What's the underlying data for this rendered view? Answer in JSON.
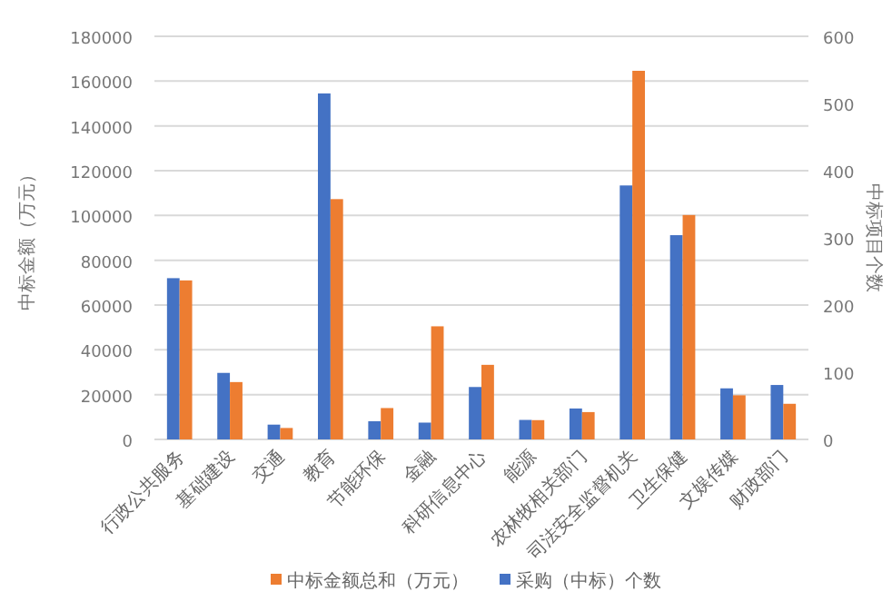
{
  "chart_data": {
    "type": "bar",
    "categories": [
      "行政公共服务",
      "基础建设",
      "交通",
      "教育",
      "节能环保",
      "金融",
      "科研信息中心",
      "能源",
      "农林牧相关部门",
      "司法安全监督机关",
      "卫生保健",
      "文娱传媒",
      "财政部门"
    ],
    "series": [
      {
        "name": "采购（中标）个数",
        "color": "#4472c4",
        "axis": "y2",
        "values": [
          240,
          99,
          22,
          515,
          27,
          25,
          78,
          29,
          46,
          378,
          304,
          76,
          81
        ]
      },
      {
        "name": "中标金额总和（万元）",
        "color": "#ed7d31",
        "values": [
          71000,
          25600,
          5100,
          107300,
          14000,
          50500,
          33300,
          8600,
          12200,
          164600,
          100200,
          19700,
          15900
        ]
      }
    ],
    "ylabel": "中标金额（万元）",
    "y2label": "中标项目个数",
    "ylim": [
      0,
      180000
    ],
    "yticks": [
      0,
      20000,
      40000,
      60000,
      80000,
      100000,
      120000,
      140000,
      160000,
      180000
    ],
    "y2lim": [
      0,
      600
    ],
    "y2ticks": [
      0,
      100,
      200,
      300,
      400,
      500,
      600
    ],
    "grid": "y",
    "legend": "bottom"
  }
}
